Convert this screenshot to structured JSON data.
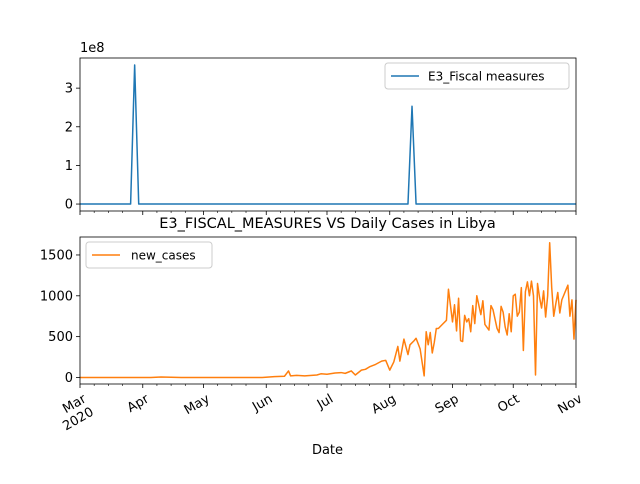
{
  "chart_data": [
    {
      "type": "line",
      "title": "",
      "xlabel": "",
      "ylabel": "",
      "y_offset_text": "1e8",
      "ylim": [
        -0.18,
        3.78
      ],
      "y_ticks": [
        0,
        1,
        2,
        3
      ],
      "y_tick_labels": [
        "0",
        "1",
        "2",
        "3"
      ],
      "x_range": [
        "2020-03-01",
        "2020-11-01"
      ],
      "x_tick_labels_shown": false,
      "legend": {
        "placement": "upper right"
      },
      "series": [
        {
          "name": "E3_Fiscal measures",
          "color": "#1f77b4",
          "x": [
            "2020-03-01",
            "2020-03-26",
            "2020-03-28",
            "2020-03-30",
            "2020-08-10",
            "2020-08-12",
            "2020-08-14",
            "2020-11-01"
          ],
          "values": [
            0,
            0,
            3.6,
            0,
            0,
            2.53,
            0,
            0
          ]
        }
      ]
    },
    {
      "type": "line",
      "title": "E3_FISCAL_MEASURES VS Daily Cases in Libya",
      "xlabel": "Date",
      "ylabel": "",
      "ylim": [
        -80,
        1720
      ],
      "y_ticks": [
        0,
        500,
        1000,
        1500
      ],
      "y_tick_labels": [
        "0",
        "500",
        "1000",
        "1500"
      ],
      "x_range": [
        "2020-03-01",
        "2020-11-01"
      ],
      "x_ticks": [
        "2020-03-01",
        "2020-04-01",
        "2020-05-01",
        "2020-06-01",
        "2020-07-01",
        "2020-08-01",
        "2020-09-01",
        "2020-10-01",
        "2020-11-01"
      ],
      "x_tick_labels": [
        "Mar\n2020",
        "Apr",
        "May",
        "Jun",
        "Jul",
        "Aug",
        "Sep",
        "Oct",
        "Nov"
      ],
      "legend": {
        "placement": "upper left"
      },
      "series": [
        {
          "name": "new_cases",
          "color": "#ff7f0e",
          "x": [
            "2020-03-01",
            "2020-03-25",
            "2020-04-05",
            "2020-04-10",
            "2020-04-20",
            "2020-05-10",
            "2020-05-30",
            "2020-06-05",
            "2020-06-10",
            "2020-06-12",
            "2020-06-13",
            "2020-06-16",
            "2020-06-20",
            "2020-06-26",
            "2020-06-28",
            "2020-07-01",
            "2020-07-05",
            "2020-07-08",
            "2020-07-10",
            "2020-07-12",
            "2020-07-13",
            "2020-07-15",
            "2020-07-18",
            "2020-07-20",
            "2020-07-22",
            "2020-07-25",
            "2020-07-28",
            "2020-07-30",
            "2020-08-01",
            "2020-08-03",
            "2020-08-05",
            "2020-08-06",
            "2020-08-08",
            "2020-08-10",
            "2020-08-11",
            "2020-08-13",
            "2020-08-14",
            "2020-08-16",
            "2020-08-18",
            "2020-08-19",
            "2020-08-20",
            "2020-08-21",
            "2020-08-22",
            "2020-08-23",
            "2020-08-24",
            "2020-08-25",
            "2020-08-27",
            "2020-08-29",
            "2020-08-30",
            "2020-09-01",
            "2020-09-02",
            "2020-09-03",
            "2020-09-04",
            "2020-09-05",
            "2020-09-06",
            "2020-09-07",
            "2020-09-08",
            "2020-09-09",
            "2020-09-10",
            "2020-09-11",
            "2020-09-12",
            "2020-09-13",
            "2020-09-15",
            "2020-09-16",
            "2020-09-17",
            "2020-09-19",
            "2020-09-20",
            "2020-09-21",
            "2020-09-23",
            "2020-09-24",
            "2020-09-25",
            "2020-09-26",
            "2020-09-27",
            "2020-09-28",
            "2020-09-29",
            "2020-09-30",
            "2020-10-01",
            "2020-10-02",
            "2020-10-03",
            "2020-10-04",
            "2020-10-05",
            "2020-10-06",
            "2020-10-07",
            "2020-10-08",
            "2020-10-09",
            "2020-10-10",
            "2020-10-11",
            "2020-10-12",
            "2020-10-13",
            "2020-10-14",
            "2020-10-15",
            "2020-10-16",
            "2020-10-17",
            "2020-10-18",
            "2020-10-19",
            "2020-10-20",
            "2020-10-21",
            "2020-10-22",
            "2020-10-23",
            "2020-10-24",
            "2020-10-25",
            "2020-10-26",
            "2020-10-27",
            "2020-10-28",
            "2020-10-29",
            "2020-10-30",
            "2020-10-31",
            "2020-11-01"
          ],
          "values": [
            0,
            0,
            0,
            5,
            0,
            0,
            0,
            10,
            15,
            80,
            20,
            25,
            20,
            30,
            45,
            40,
            55,
            60,
            50,
            70,
            80,
            30,
            90,
            100,
            130,
            160,
            200,
            210,
            90,
            190,
            380,
            200,
            470,
            280,
            400,
            450,
            480,
            350,
            20,
            560,
            400,
            550,
            300,
            430,
            600,
            600,
            650,
            700,
            1080,
            680,
            890,
            570,
            970,
            450,
            440,
            760,
            680,
            720,
            560,
            880,
            660,
            1000,
            770,
            940,
            650,
            580,
            880,
            830,
            600,
            550,
            870,
            800,
            620,
            520,
            780,
            560,
            1000,
            1020,
            750,
            800,
            1100,
            330,
            1050,
            1170,
            1000,
            1180,
            1000,
            30,
            1150,
            980,
            850,
            1060,
            740,
            1000,
            1650,
            1100,
            750,
            900,
            1040,
            790,
            950,
            1010,
            1070,
            1130,
            750,
            950,
            470,
            950
          ]
        }
      ]
    }
  ]
}
